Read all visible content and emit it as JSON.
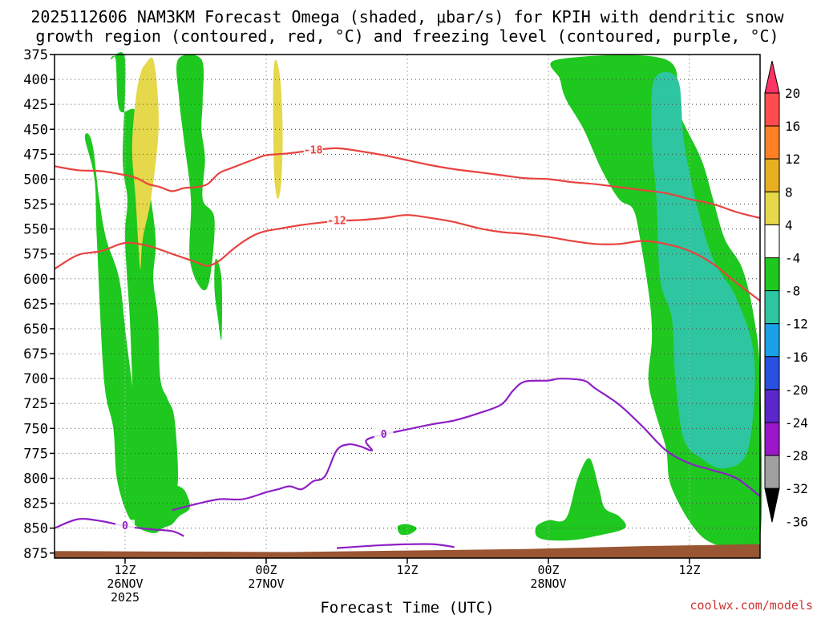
{
  "chart_data": {
    "type": "contour",
    "title_line1": "2025112606 NAM3KM Forecast Omega (shaded, μbar/s) for KPIH with dendritic snow",
    "title_line2": "growth region (contoured, red, °C) and freezing level (contoured, purple, °C)",
    "xlabel": "Forecast Time (UTC)",
    "credit": "coolwx.com/models",
    "x_range_hours": [
      0,
      60
    ],
    "y_range_mb": [
      375,
      880
    ],
    "y_ticks": [
      375,
      400,
      425,
      450,
      475,
      500,
      525,
      550,
      575,
      600,
      625,
      650,
      675,
      700,
      725,
      750,
      775,
      800,
      825,
      850,
      875
    ],
    "x_ticks": [
      {
        "hour": 6,
        "line1": "12Z",
        "line2": "26NOV",
        "line3": "2025"
      },
      {
        "hour": 18,
        "line1": "00Z",
        "line2": "27NOV",
        "line3": ""
      },
      {
        "hour": 30,
        "line1": "12Z",
        "line2": "",
        "line3": ""
      },
      {
        "hour": 42,
        "line1": "00Z",
        "line2": "28NOV",
        "line3": ""
      },
      {
        "hour": 54,
        "line1": "12Z",
        "line2": "",
        "line3": ""
      }
    ],
    "colorbar": {
      "labels": [
        "20",
        "16",
        "12",
        "8",
        "4",
        "-4",
        "-8",
        "-12",
        "-16",
        "-20",
        "-24",
        "-28",
        "-32",
        "-36"
      ],
      "colors": [
        "#ff3366",
        "#ff4d4d",
        "#ff7f27",
        "#e8b020",
        "#e5d84a",
        "#ffffff",
        "#1ec81e",
        "#2ec6a0",
        "#1aa0e8",
        "#2a50e0",
        "#5a28c8",
        "#9a18c8",
        "#a0a0a0",
        "#000000"
      ]
    },
    "contours": {
      "dgz_red": [
        {
          "label": "-18",
          "points": [
            [
              0,
              487
            ],
            [
              2,
              491
            ],
            [
              4,
              492
            ],
            [
              6,
              496
            ],
            [
              7,
              499
            ],
            [
              8,
              505
            ],
            [
              9,
              508
            ],
            [
              10,
              512
            ],
            [
              11,
              509
            ],
            [
              12,
              508
            ],
            [
              13,
              505
            ],
            [
              14,
              494
            ],
            [
              15,
              489
            ],
            [
              17,
              480
            ],
            [
              18,
              476
            ],
            [
              20,
              474
            ],
            [
              22,
              471
            ],
            [
              24,
              469
            ],
            [
              26,
              472
            ],
            [
              28,
              476
            ],
            [
              30,
              481
            ],
            [
              32,
              486
            ],
            [
              34,
              490
            ],
            [
              36,
              493
            ],
            [
              38,
              496
            ],
            [
              40,
              499
            ],
            [
              42,
              500
            ],
            [
              44,
              503
            ],
            [
              46,
              505
            ],
            [
              48,
              508
            ],
            [
              50,
              511
            ],
            [
              52,
              514
            ],
            [
              54,
              520
            ],
            [
              56,
              525
            ],
            [
              58,
              533
            ],
            [
              60,
              539
            ]
          ]
        },
        {
          "label": "-12",
          "points": [
            [
              0,
              590
            ],
            [
              2,
              576
            ],
            [
              4,
              572
            ],
            [
              6,
              564
            ],
            [
              8,
              567
            ],
            [
              10,
              575
            ],
            [
              12,
              583
            ],
            [
              13,
              587
            ],
            [
              14,
              582
            ],
            [
              15,
              572
            ],
            [
              16,
              563
            ],
            [
              17,
              556
            ],
            [
              18,
              552
            ],
            [
              19,
              550
            ],
            [
              21,
              546
            ],
            [
              24,
              542
            ],
            [
              26,
              541
            ],
            [
              28,
              539
            ],
            [
              30,
              536
            ],
            [
              32,
              539
            ],
            [
              34,
              543
            ],
            [
              36,
              549
            ],
            [
              38,
              553
            ],
            [
              40,
              555
            ],
            [
              42,
              558
            ],
            [
              44,
              562
            ],
            [
              46,
              565
            ],
            [
              48,
              565
            ],
            [
              50,
              562
            ],
            [
              52,
              565
            ],
            [
              54,
              572
            ],
            [
              56,
              585
            ],
            [
              58,
              604
            ],
            [
              60,
              622
            ]
          ]
        }
      ],
      "freezing_purple": [
        {
          "label": "0",
          "points": [
            [
              10,
              832
            ],
            [
              12,
              826
            ],
            [
              14,
              821
            ],
            [
              16,
              821
            ],
            [
              18,
              814
            ],
            [
              19,
              811
            ],
            [
              20,
              808
            ],
            [
              21,
              811
            ],
            [
              22,
              803
            ],
            [
              23,
              798
            ],
            [
              24,
              772
            ],
            [
              25,
              766
            ],
            [
              26,
              768
            ],
            [
              27,
              772
            ],
            [
              26.5,
              762
            ],
            [
              28,
              756
            ],
            [
              30,
              751
            ],
            [
              32,
              746
            ],
            [
              34,
              742
            ],
            [
              36,
              735
            ],
            [
              38,
              726
            ],
            [
              39,
              712
            ],
            [
              40,
              703
            ],
            [
              42,
              702
            ],
            [
              43,
              700
            ],
            [
              45,
              702
            ],
            [
              46,
              710
            ],
            [
              48,
              726
            ],
            [
              50,
              748
            ],
            [
              52,
              772
            ],
            [
              54,
              785
            ],
            [
              56,
              792
            ],
            [
              58,
              800
            ],
            [
              60,
              818
            ]
          ]
        },
        {
          "label": "0",
          "points": [
            [
              0,
              850
            ],
            [
              2,
              841
            ],
            [
              4,
              843
            ],
            [
              6,
              848
            ],
            [
              8,
              851
            ],
            [
              10,
              853
            ],
            [
              11,
              858
            ]
          ]
        },
        {
          "label": "",
          "points": [
            [
              24,
              870
            ],
            [
              28,
              867
            ],
            [
              32,
              866
            ],
            [
              34,
              869
            ]
          ]
        }
      ]
    },
    "terrain_top_mb": {
      "hours": [
        0,
        20,
        40,
        50,
        60
      ],
      "values": [
        873,
        874,
        871,
        868,
        866
      ]
    },
    "omega_shaded_regions": [
      {
        "color": "#1ec81e",
        "value_range": [
          -8,
          -4
        ],
        "points": [
          [
            4.8,
            380
          ],
          [
            6,
            380
          ],
          [
            5.8,
            480
          ],
          [
            6.2,
            520
          ],
          [
            6,
            560
          ],
          [
            6.4,
            640
          ],
          [
            6.8,
            740
          ],
          [
            7.5,
            790
          ],
          [
            8,
            810
          ],
          [
            9,
            812
          ],
          [
            10,
            820
          ],
          [
            10.5,
            800
          ],
          [
            10.2,
            740
          ],
          [
            9.6,
            720
          ],
          [
            9,
            700
          ],
          [
            8.8,
            640
          ],
          [
            8.4,
            600
          ],
          [
            8.6,
            560
          ],
          [
            8,
            500
          ],
          [
            7.8,
            450
          ],
          [
            6.8,
            430
          ],
          [
            5.5,
            430
          ],
          [
            5.2,
            380
          ]
        ]
      },
      {
        "color": "#1ec81e",
        "value_range": [
          -8,
          -4
        ],
        "points": [
          [
            2.6,
            460
          ],
          [
            3.4,
            500
          ],
          [
            3.6,
            560
          ],
          [
            4.2,
            700
          ],
          [
            5,
            750
          ],
          [
            5.3,
            800
          ],
          [
            6.2,
            836
          ],
          [
            7.2,
            850
          ],
          [
            8.5,
            855
          ],
          [
            9.2,
            850
          ],
          [
            10,
            846
          ],
          [
            10.6,
            838
          ],
          [
            11.5,
            830
          ],
          [
            11.2,
            815
          ],
          [
            10.6,
            808
          ],
          [
            9.5,
            806
          ],
          [
            8.4,
            790
          ],
          [
            7.5,
            760
          ],
          [
            6.8,
            720
          ],
          [
            6.1,
            660
          ],
          [
            5.5,
            600
          ],
          [
            4.4,
            560
          ],
          [
            3.8,
            520
          ],
          [
            3.3,
            470
          ],
          [
            2.9,
            455
          ]
        ]
      },
      {
        "color": "#1ec81e",
        "value_range": [
          -8,
          -4
        ],
        "points": [
          [
            10.5,
            380
          ],
          [
            12.5,
            380
          ],
          [
            12.6,
            420
          ],
          [
            12.5,
            450
          ],
          [
            12.8,
            480
          ],
          [
            12.6,
            520
          ],
          [
            13.6,
            540
          ],
          [
            13.2,
            600
          ],
          [
            12.5,
            610
          ],
          [
            11.5,
            580
          ],
          [
            11.6,
            520
          ],
          [
            11,
            460
          ],
          [
            10.6,
            420
          ]
        ]
      },
      {
        "color": "#e5d84a",
        "value_range": [
          4,
          8
        ],
        "points": [
          [
            7.7,
            385
          ],
          [
            8.4,
            380
          ],
          [
            8.8,
            420
          ],
          [
            8.8,
            460
          ],
          [
            8.2,
            520
          ],
          [
            7.5,
            560
          ],
          [
            7.3,
            590
          ],
          [
            7.1,
            560
          ],
          [
            6.9,
            520
          ],
          [
            6.6,
            470
          ],
          [
            6.9,
            420
          ],
          [
            7.3,
            395
          ]
        ]
      },
      {
        "color": "#e5d84a",
        "value_range": [
          4,
          8
        ],
        "points": [
          [
            18.8,
            380
          ],
          [
            19.2,
            400
          ],
          [
            19.4,
            450
          ],
          [
            19.3,
            500
          ],
          [
            19,
            520
          ],
          [
            18.7,
            500
          ],
          [
            18.6,
            450
          ],
          [
            18.6,
            400
          ]
        ]
      },
      {
        "color": "#1ec81e",
        "value_range": [
          -8,
          -4
        ],
        "points": [
          [
            13.7,
            580
          ],
          [
            14.2,
            600
          ],
          [
            14.2,
            660
          ],
          [
            13.9,
            640
          ],
          [
            13.6,
            610
          ]
        ]
      },
      {
        "color": "#1ec81e",
        "value_range": [
          -8,
          -4
        ],
        "points": [
          [
            42.8,
            380
          ],
          [
            52,
            380
          ],
          [
            53,
            430
          ],
          [
            55,
            480
          ],
          [
            56,
            520
          ],
          [
            57,
            560
          ],
          [
            58.5,
            590
          ],
          [
            59.5,
            640
          ],
          [
            60,
            700
          ],
          [
            60,
            860
          ],
          [
            58,
            870
          ],
          [
            55,
            858
          ],
          [
            52.5,
            810
          ],
          [
            52,
            770
          ],
          [
            51,
            730
          ],
          [
            50.5,
            700
          ],
          [
            50.8,
            660
          ],
          [
            50.6,
            620
          ],
          [
            49.8,
            560
          ],
          [
            49.2,
            530
          ],
          [
            48,
            520
          ],
          [
            46.5,
            490
          ],
          [
            45,
            450
          ],
          [
            43.5,
            420
          ],
          [
            43,
            400
          ]
        ]
      },
      {
        "color": "#2ec6a0",
        "value_range": [
          -12,
          -8
        ],
        "points": [
          [
            51,
            400
          ],
          [
            53,
            400
          ],
          [
            53.5,
            460
          ],
          [
            54.5,
            520
          ],
          [
            56,
            580
          ],
          [
            58,
            620
          ],
          [
            59.5,
            680
          ],
          [
            59,
            770
          ],
          [
            57,
            790
          ],
          [
            55,
            780
          ],
          [
            53.5,
            760
          ],
          [
            52.8,
            700
          ],
          [
            52.5,
            640
          ],
          [
            51.5,
            600
          ],
          [
            51.2,
            520
          ],
          [
            50.8,
            460
          ]
        ]
      },
      {
        "color": "#1ec81e",
        "value_range": [
          -8,
          -4
        ],
        "points": [
          [
            41,
            848
          ],
          [
            42,
            842
          ],
          [
            43.5,
            840
          ],
          [
            44.5,
            800
          ],
          [
            45.5,
            780
          ],
          [
            46.3,
            810
          ],
          [
            46.8,
            830
          ],
          [
            48,
            838
          ],
          [
            48.5,
            850
          ],
          [
            46,
            858
          ],
          [
            44,
            862
          ],
          [
            42,
            862
          ],
          [
            41,
            858
          ]
        ]
      },
      {
        "color": "#1ec81e",
        "value_range": [
          -8,
          -4
        ],
        "points": [
          [
            29.2,
            848
          ],
          [
            30,
            846
          ],
          [
            30.8,
            850
          ],
          [
            30.2,
            856
          ],
          [
            29.4,
            856
          ]
        ]
      }
    ]
  }
}
